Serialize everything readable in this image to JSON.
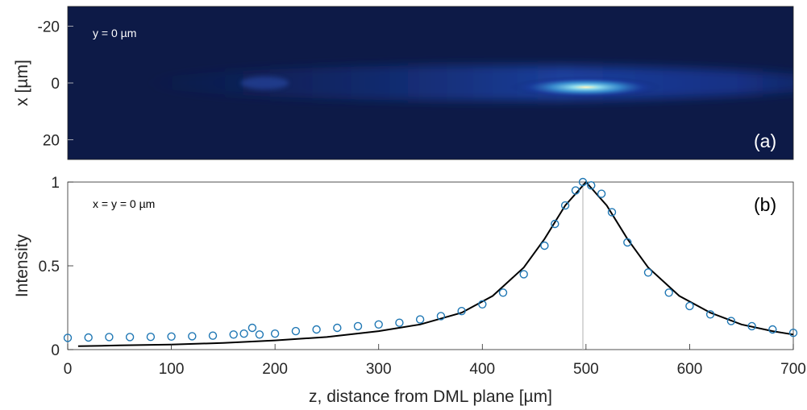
{
  "chart_data": [
    {
      "type": "heatmap",
      "annotation": "y = 0 µm",
      "panel_label": "(a)",
      "ylabel": "x [µm]",
      "ylim": [
        -27,
        27
      ],
      "xlim": [
        0,
        700
      ],
      "y_ticks": [
        "-20",
        "0",
        "20"
      ],
      "y_tick_values": [
        -20,
        0,
        20
      ],
      "colormap": [
        "#0d1a47",
        "#10216b",
        "#1a3aa0",
        "#2a63c8",
        "#3f9fdc",
        "#8fe0f0",
        "#fff6c0"
      ],
      "features": {
        "focus_z": 500,
        "focus_x": 1.5,
        "secondary_feature_z": 190
      }
    },
    {
      "type": "scatter",
      "annotation": "x = y = 0 µm",
      "panel_label": "(b)",
      "xlabel": "z, distance from DML plane [µm]",
      "ylabel": "Intensity",
      "xlim": [
        0,
        700
      ],
      "ylim": [
        0,
        1
      ],
      "x_ticks": [
        "0",
        "100",
        "200",
        "300",
        "400",
        "500",
        "600",
        "700"
      ],
      "x_tick_values": [
        0,
        100,
        200,
        300,
        400,
        500,
        600,
        700
      ],
      "y_ticks": [
        "0",
        "0.5",
        "1"
      ],
      "y_tick_values": [
        0,
        0.5,
        1
      ],
      "vertical_line_x": 497,
      "series": [
        {
          "kind": "markers",
          "color": "#1f77b4",
          "x": [
            0,
            20,
            40,
            60,
            80,
            100,
            120,
            140,
            160,
            170,
            178,
            185,
            200,
            220,
            240,
            260,
            280,
            300,
            320,
            340,
            360,
            380,
            400,
            420,
            440,
            460,
            470,
            480,
            490,
            497,
            505,
            515,
            525,
            540,
            560,
            580,
            600,
            620,
            640,
            660,
            680,
            700
          ],
          "y": [
            0.07,
            0.072,
            0.075,
            0.075,
            0.076,
            0.078,
            0.08,
            0.083,
            0.09,
            0.095,
            0.13,
            0.09,
            0.095,
            0.11,
            0.12,
            0.13,
            0.14,
            0.15,
            0.16,
            0.18,
            0.2,
            0.23,
            0.27,
            0.34,
            0.45,
            0.62,
            0.75,
            0.86,
            0.95,
            1.0,
            0.98,
            0.93,
            0.82,
            0.64,
            0.46,
            0.34,
            0.26,
            0.21,
            0.17,
            0.14,
            0.12,
            0.1
          ]
        },
        {
          "kind": "line",
          "color": "#000000",
          "x": [
            10,
            50,
            100,
            150,
            200,
            250,
            300,
            340,
            380,
            410,
            440,
            460,
            480,
            500,
            520,
            540,
            560,
            590,
            620,
            650,
            680,
            700
          ],
          "y": [
            0.02,
            0.025,
            0.03,
            0.04,
            0.055,
            0.075,
            0.11,
            0.15,
            0.22,
            0.32,
            0.49,
            0.66,
            0.86,
            1.0,
            0.86,
            0.66,
            0.49,
            0.32,
            0.22,
            0.15,
            0.11,
            0.09
          ]
        }
      ]
    }
  ]
}
